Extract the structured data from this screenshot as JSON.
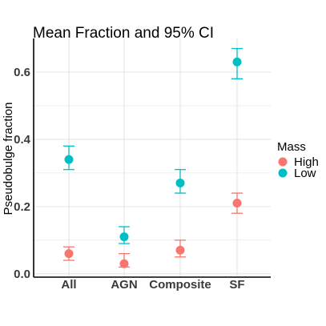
{
  "chart_data": {
    "type": "scatter",
    "title": "Mean Fraction and 95% CI",
    "xlabel": "",
    "ylabel": "Pseudobulge fraction",
    "categories": [
      "All",
      "AGN",
      "Composite",
      "SF"
    ],
    "y_ticks": [
      "0.0",
      "0.2",
      "0.4",
      "0.6"
    ],
    "y_tick_values": [
      0.0,
      0.2,
      0.4,
      0.6
    ],
    "ylim": [
      -0.01,
      0.7
    ],
    "grid": true,
    "legend": {
      "title": "Mass",
      "position": "right"
    },
    "series": [
      {
        "name": "High",
        "color": "#F8766D",
        "values": [
          0.06,
          0.03,
          0.07,
          0.21
        ],
        "ci_low": [
          0.04,
          0.02,
          0.05,
          0.18
        ],
        "ci_high": [
          0.08,
          0.06,
          0.1,
          0.24
        ]
      },
      {
        "name": "Low",
        "color": "#00BFC4",
        "values": [
          0.34,
          0.11,
          0.27,
          0.63
        ],
        "ci_low": [
          0.31,
          0.09,
          0.24,
          0.58
        ],
        "ci_high": [
          0.38,
          0.14,
          0.31,
          0.67
        ]
      }
    ]
  }
}
